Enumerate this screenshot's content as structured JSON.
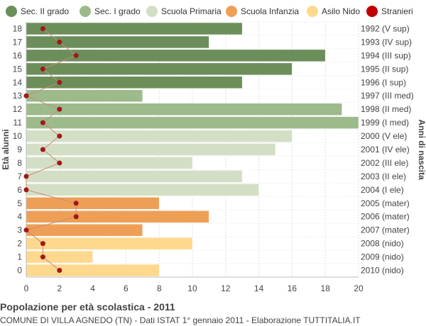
{
  "chart_data": {
    "type": "bar",
    "orientation": "horizontal",
    "categories": [
      "18",
      "17",
      "16",
      "15",
      "14",
      "13",
      "12",
      "11",
      "10",
      "9",
      "8",
      "7",
      "6",
      "5",
      "4",
      "3",
      "2",
      "1",
      "0"
    ],
    "birth_years": [
      "1992 (V sup)",
      "1993 (IV sup)",
      "1994 (III sup)",
      "1995 (II sup)",
      "1996 (I sup)",
      "1997 (III med)",
      "1998 (II med)",
      "1999 (I med)",
      "2000 (V ele)",
      "2001 (IV ele)",
      "2002 (III ele)",
      "2003 (II ele)",
      "2004 (I ele)",
      "2005 (mater)",
      "2006 (mater)",
      "2007 (mater)",
      "2008 (nido)",
      "2009 (nido)",
      "2010 (nido)"
    ],
    "values": [
      13,
      11,
      18,
      16,
      13,
      7,
      19,
      20,
      16,
      15,
      10,
      13,
      14,
      8,
      11,
      7,
      10,
      4,
      8
    ],
    "bar_groups": [
      "sec2",
      "sec2",
      "sec2",
      "sec2",
      "sec2",
      "sec1",
      "sec1",
      "sec1",
      "prim",
      "prim",
      "prim",
      "prim",
      "prim",
      "inf",
      "inf",
      "inf",
      "nido",
      "nido",
      "nido"
    ],
    "foreigners": {
      "name": "Stranieri",
      "values": [
        1,
        2,
        3,
        1,
        2,
        0,
        2,
        1,
        2,
        1,
        2,
        0,
        0,
        3,
        3,
        0,
        1,
        1,
        2
      ]
    },
    "legend": [
      {
        "key": "sec2",
        "label": "Sec. II grado",
        "color": "#6b8e5a"
      },
      {
        "key": "sec1",
        "label": "Sec. I grado",
        "color": "#9cba8a"
      },
      {
        "key": "prim",
        "label": "Scuola Primaria",
        "color": "#d3dfc5"
      },
      {
        "key": "inf",
        "label": "Scuola Infanzia",
        "color": "#ee9f55"
      },
      {
        "key": "nido",
        "label": "Asilo Nido",
        "color": "#fdd88d"
      },
      {
        "key": "stranieri",
        "label": "Stranieri",
        "color": "#c00000"
      }
    ],
    "xticks": [
      0,
      2,
      4,
      6,
      8,
      10,
      12,
      14,
      16,
      18,
      20
    ],
    "xlim": [
      0,
      20
    ],
    "ylabel": "Età alunni",
    "ylabel_right": "Anni di nascita",
    "grid": true,
    "legend_position": "top"
  },
  "footer": {
    "title": "Popolazione per età scolastica - 2011",
    "subtitle": "COMUNE DI VILLA AGNEDO (TN) - Dati ISTAT 1° gennaio 2011 - Elaborazione TUTTITALIA.IT"
  }
}
